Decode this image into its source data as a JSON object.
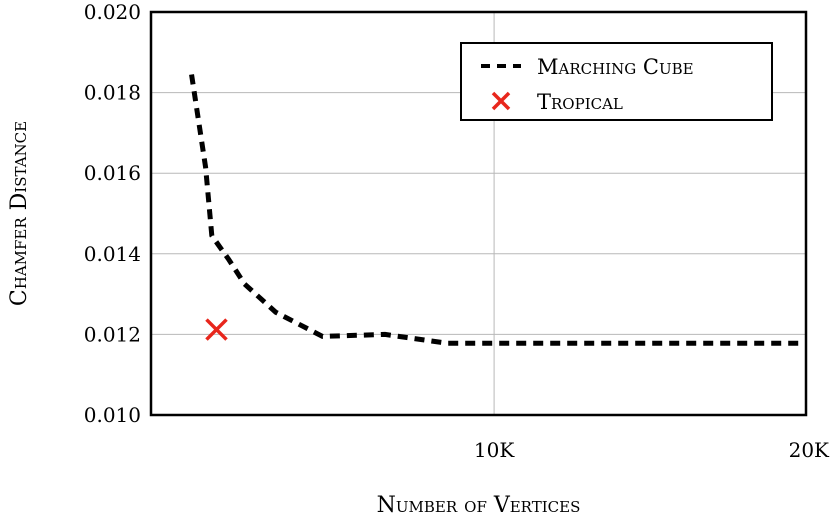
{
  "chart_data": {
    "type": "line",
    "xlabel": "Number of Vertices",
    "ylabel": "Chamfer Distance",
    "xlim": [
      -1000,
      20000
    ],
    "ylim": [
      0.01,
      0.02
    ],
    "grid": true,
    "legend_position": "top-right",
    "x_ticks": [
      {
        "value": 10000,
        "label": "10K"
      },
      {
        "value": 20000,
        "label": "20K"
      }
    ],
    "y_ticks": [
      {
        "value": 0.01,
        "label": "0.010"
      },
      {
        "value": 0.012,
        "label": "0.012"
      },
      {
        "value": 0.014,
        "label": "0.014"
      },
      {
        "value": 0.016,
        "label": "0.016"
      },
      {
        "value": 0.018,
        "label": "0.018"
      },
      {
        "value": 0.02,
        "label": "0.020"
      }
    ],
    "series": [
      {
        "name": "Marching Cube",
        "style": "dashed-line",
        "color": "#000000",
        "x": [
          300,
          750,
          950,
          1500,
          2000,
          3000,
          4500,
          6500,
          8500,
          10000,
          15000,
          20000
        ],
        "y": [
          0.01845,
          0.01615,
          0.01445,
          0.01385,
          0.01325,
          0.01255,
          0.01195,
          0.012,
          0.01178,
          0.01178,
          0.01178,
          0.01178
        ]
      },
      {
        "name": "Tropical",
        "style": "x-marker",
        "color": "#e8261c",
        "x": [
          1100
        ],
        "y": [
          0.01212
        ]
      }
    ]
  }
}
